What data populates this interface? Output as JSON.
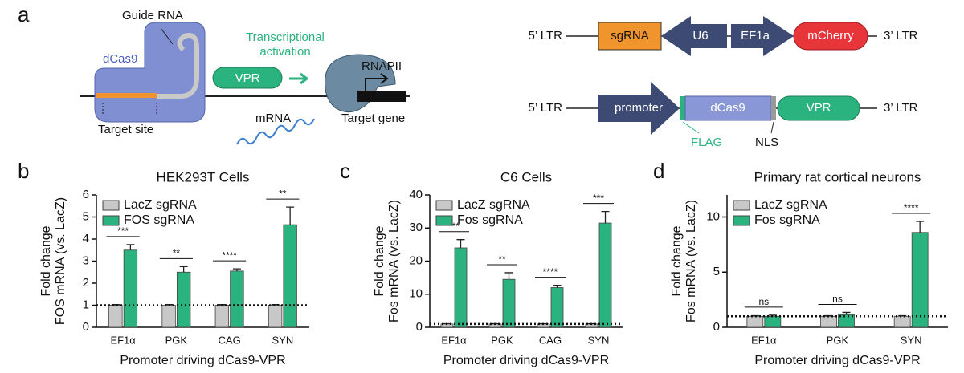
{
  "panel_a": {
    "label": "a",
    "diagram": {
      "guide_rna": "Guide RNA",
      "dcas9": "dCas9",
      "activation": [
        "Transcriptional",
        "activation"
      ],
      "vpr": "VPR",
      "rnapii": "RNAPII",
      "mrna": "mRNA",
      "target_site": "Target site",
      "target_gene": "Target gene"
    },
    "constructs": [
      {
        "parts": [
          "5’ LTR",
          "sgRNA",
          "U6",
          "EF1a",
          "mCherry",
          "3’ LTR"
        ]
      },
      {
        "parts": [
          "5’ LTR",
          "promoter",
          "dCas9",
          "VPR",
          "3’ LTR"
        ],
        "tags": [
          "FLAG",
          "NLS"
        ]
      }
    ]
  },
  "chart_data": [
    {
      "type": "bar",
      "panel": "b",
      "title": "HEK293T Cells",
      "ylabel": [
        "Fold change",
        "FOS mRNA (vs. LacZ)"
      ],
      "xlabel": "Promoter driving dCas9-VPR",
      "categories": [
        "EF1α",
        "PGK",
        "CAG",
        "SYN"
      ],
      "series": [
        {
          "name": "LacZ sgRNA",
          "color": "#c8c8c8",
          "values": [
            1,
            1,
            1,
            1
          ],
          "errors": [
            0.03,
            0.03,
            0.03,
            0.03
          ]
        },
        {
          "name": "FOS sgRNA",
          "color": "#2bb37f",
          "values": [
            3.5,
            2.5,
            2.55,
            4.65
          ],
          "errors": [
            0.25,
            0.25,
            0.1,
            0.8
          ]
        }
      ],
      "significance": [
        "***",
        "**",
        "****",
        "**"
      ],
      "reference_line": 1,
      "ylim": [
        0,
        6
      ],
      "yticks": [
        0,
        1,
        2,
        3,
        4,
        5,
        6
      ],
      "legend": "upper-left"
    },
    {
      "type": "bar",
      "panel": "c",
      "title": "C6 Cells",
      "ylabel": [
        "Fold change",
        "Fos mRNA (vs. LacZ)"
      ],
      "xlabel": "Promoter driving dCas9-VPR",
      "categories": [
        "EF1α",
        "PGK",
        "CAG",
        "SYN"
      ],
      "series": [
        {
          "name": "LacZ sgRNA",
          "color": "#c8c8c8",
          "values": [
            1,
            1,
            1,
            1
          ],
          "errors": [
            0.1,
            0.1,
            0.1,
            0.1
          ]
        },
        {
          "name": "Fos sgRNA",
          "color": "#2bb37f",
          "values": [
            24,
            14.5,
            12,
            31.5
          ],
          "errors": [
            2.5,
            2,
            0.7,
            3.5
          ]
        }
      ],
      "significance": [
        "***",
        "**",
        "****",
        "***"
      ],
      "reference_line": 1,
      "ylim": [
        0,
        40
      ],
      "yticks": [
        0,
        10,
        20,
        30,
        40
      ],
      "legend": "upper-left"
    },
    {
      "type": "bar",
      "panel": "d",
      "title": "Primary rat cortical neurons",
      "ylabel": [
        "Fold change",
        "Fos mRNA (vs. LacZ)"
      ],
      "xlabel": "Promoter driving dCas9-VPR",
      "categories": [
        "EF1α",
        "PGK",
        "SYN"
      ],
      "series": [
        {
          "name": "LacZ sgRNA",
          "color": "#c8c8c8",
          "values": [
            1,
            1,
            1
          ],
          "errors": [
            0.05,
            0.05,
            0.05
          ]
        },
        {
          "name": "Fos sgRNA",
          "color": "#2bb37f",
          "values": [
            1,
            1.15,
            8.6
          ],
          "errors": [
            0.1,
            0.2,
            1
          ]
        }
      ],
      "significance": [
        "ns",
        "ns",
        "****"
      ],
      "reference_line": 1,
      "ylim": [
        0,
        12
      ],
      "yticks": [
        0,
        5,
        10
      ],
      "legend": "upper-left"
    }
  ]
}
